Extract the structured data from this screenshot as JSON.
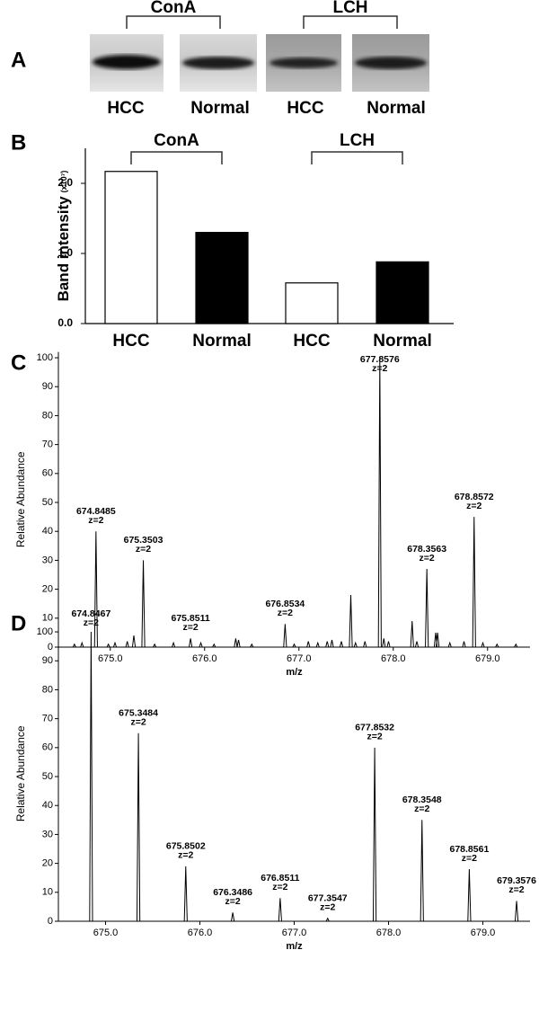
{
  "blot": {
    "panel": "A",
    "groups": [
      "ConA",
      "LCH"
    ],
    "lanes": [
      "HCC",
      "Normal",
      "HCC",
      "Normal"
    ]
  },
  "chart_data": [
    {
      "type": "bar",
      "panel": "B",
      "ylabel": "Band intensity",
      "yunit": "(x10⁷)",
      "groups": [
        "ConA",
        "LCH"
      ],
      "categories": [
        "HCC",
        "Normal",
        "HCC",
        "Normal"
      ],
      "values": [
        2.17,
        1.3,
        0.58,
        0.88
      ],
      "colors": [
        "#ffffff",
        "#000000",
        "#ffffff",
        "#000000"
      ],
      "ylim": [
        0,
        2.5
      ],
      "yticks": [
        {
          "value": 0,
          "label": "0.0"
        },
        {
          "value": 1,
          "label": "1.0"
        },
        {
          "value": 2,
          "label": "2.0"
        }
      ]
    },
    {
      "type": "spectrum",
      "panel": "C",
      "xlabel": "m/z",
      "ylabel": "Relative Abundance",
      "xlim": [
        674.45,
        679.45
      ],
      "ylim": [
        0,
        102
      ],
      "xticks": [
        {
          "value": 675,
          "label": "675.0"
        },
        {
          "value": 676,
          "label": "676.0"
        },
        {
          "value": 677,
          "label": "677.0"
        },
        {
          "value": 678,
          "label": "678.0"
        },
        {
          "value": 679,
          "label": "679.0"
        }
      ],
      "yticks": [
        0,
        10,
        20,
        30,
        40,
        50,
        60,
        70,
        80,
        90,
        100
      ],
      "x": [
        674.62,
        674.7,
        674.8485,
        674.98,
        675.05,
        675.18,
        675.25,
        675.3503,
        675.47,
        675.67,
        675.8511,
        675.96,
        676.1,
        676.33,
        676.36,
        676.5,
        676.8534,
        676.95,
        677.1,
        677.2,
        677.3,
        677.35,
        677.45,
        677.55,
        677.6,
        677.7,
        677.8576,
        677.9,
        677.95,
        678.2,
        678.25,
        678.3563,
        678.45,
        678.47,
        678.6,
        678.75,
        678.8572,
        678.95,
        679.1,
        679.3
      ],
      "values": [
        1,
        1.5,
        40,
        1,
        1.5,
        2,
        4,
        30,
        1,
        1.5,
        3,
        1.5,
        1,
        3,
        2.5,
        1,
        8,
        1,
        2,
        1.5,
        2,
        2.5,
        2,
        18,
        1.5,
        2,
        100,
        3,
        2,
        9,
        2,
        27,
        5,
        5,
        1.5,
        2,
        45,
        1.5,
        1,
        1
      ],
      "labels": [
        null,
        null,
        "674.8485",
        null,
        null,
        null,
        null,
        "675.3503",
        null,
        null,
        "675.8511",
        null,
        null,
        null,
        null,
        null,
        "676.8534",
        null,
        null,
        null,
        null,
        null,
        null,
        null,
        null,
        null,
        "677.8576",
        null,
        null,
        null,
        null,
        "678.3563",
        null,
        null,
        null,
        null,
        "678.8572",
        null,
        null,
        null
      ],
      "charges": [
        null,
        null,
        "z=2",
        null,
        null,
        null,
        null,
        "z=2",
        null,
        null,
        "z=2",
        null,
        null,
        null,
        null,
        null,
        "z=2",
        null,
        null,
        null,
        null,
        null,
        null,
        null,
        null,
        null,
        "z=2",
        null,
        null,
        null,
        null,
        "z=2",
        null,
        null,
        null,
        null,
        "z=2",
        null,
        null,
        null
      ]
    },
    {
      "type": "spectrum",
      "panel": "D",
      "xlabel": "m/z",
      "ylabel": "Relative Abundance",
      "xlim": [
        674.5,
        679.5
      ],
      "ylim": [
        0,
        102
      ],
      "xticks": [
        {
          "value": 675,
          "label": "675.0"
        },
        {
          "value": 676,
          "label": "676.0"
        },
        {
          "value": 677,
          "label": "677.0"
        },
        {
          "value": 678,
          "label": "678.0"
        },
        {
          "value": 679,
          "label": "679.0"
        }
      ],
      "yticks": [
        0,
        10,
        20,
        30,
        40,
        50,
        60,
        70,
        80,
        90,
        100
      ],
      "x": [
        674.8467,
        675.3484,
        675.8502,
        676.3486,
        676.8511,
        677.3547,
        677.8532,
        678.3548,
        678.8561,
        679.3576
      ],
      "values": [
        100,
        65,
        19,
        3,
        8,
        1,
        60,
        35,
        18,
        7
      ],
      "labels": [
        "674.8467",
        "675.3484",
        "675.8502",
        "676.3486",
        "676.8511",
        "677.3547",
        "677.8532",
        "678.3548",
        "678.8561",
        "679.3576"
      ],
      "charges": [
        "z=2",
        "z=2",
        "z=2",
        "z=2",
        "z=2",
        "z=2",
        "z=2",
        "z=2",
        "z=2",
        "z=2"
      ]
    }
  ]
}
